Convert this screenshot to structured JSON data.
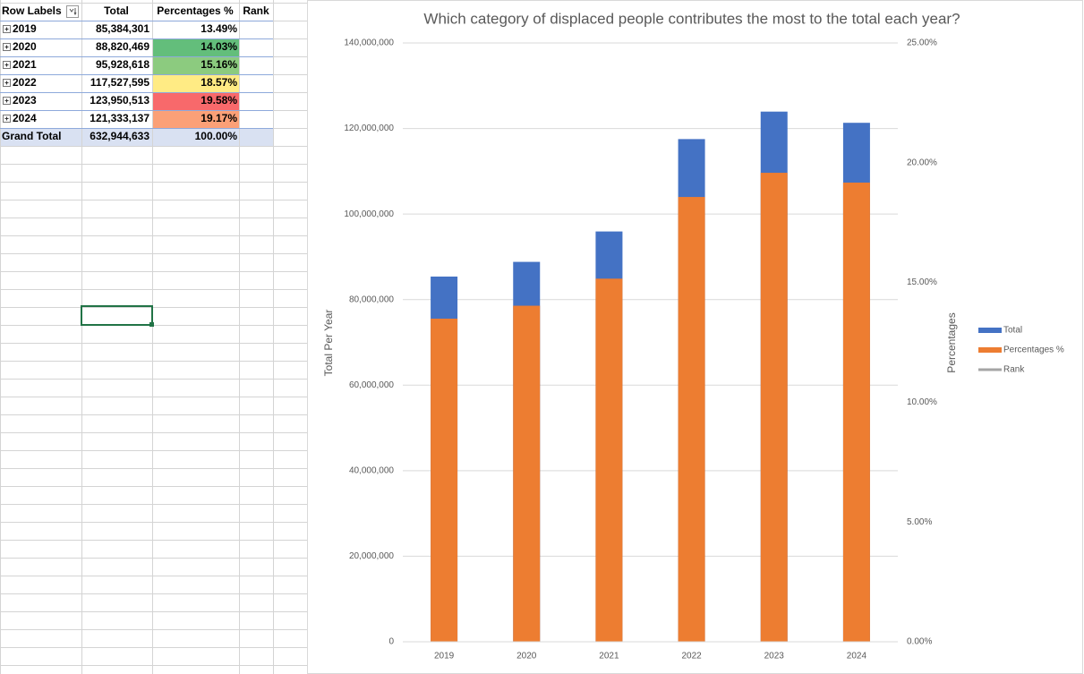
{
  "table": {
    "headers": [
      "Row Labels",
      "Total",
      "Percentages %",
      "Rank"
    ],
    "rows": [
      [
        "2019",
        "85,384,301",
        "13.49%"
      ],
      [
        "2020",
        "88,820,469",
        "14.03%"
      ],
      [
        "2021",
        "95,928,618",
        "15.16%"
      ],
      [
        "2022",
        "117,527,595",
        "18.57%"
      ],
      [
        "2023",
        "123,950,513",
        "19.58%"
      ],
      [
        "2024",
        "121,333,137",
        "19.17%"
      ]
    ],
    "percent_colors": [
      "#ffffff",
      "#63be7b",
      "#8ccb7f",
      "#ffeb84",
      "#f8696b",
      "#fba077"
    ],
    "grand_total": [
      "Grand Total",
      "632,944,633",
      "100.00%"
    ]
  },
  "chart_data": {
    "type": "bar",
    "title": "Which category of displaced people contributes the most to the total each year?",
    "y_label": "Total Per Year",
    "y2_label": "Percentages",
    "categories": [
      "2019",
      "2020",
      "2021",
      "2022",
      "2023",
      "2024"
    ],
    "series": [
      {
        "name": "Total",
        "color": "#4472c4",
        "values": [
          85384301,
          88820469,
          95928618,
          117527595,
          123950513,
          121333137
        ]
      },
      {
        "name": "Percentages %",
        "color": "#ed7d31",
        "axis": "y2",
        "values": [
          13.49,
          14.03,
          15.16,
          18.57,
          19.58,
          19.17
        ]
      },
      {
        "name": "Rank",
        "color": "#a5a5a5",
        "kind": "line",
        "values": [
          null,
          null,
          null,
          null,
          null,
          null
        ]
      }
    ],
    "ylim": [
      0,
      140000000
    ],
    "yticks": [
      0,
      {
        "value": 20000000,
        "label": "20,000,000"
      },
      {
        "value": 40000000,
        "label": "40,000,000"
      },
      {
        "value": 60000000,
        "label": "60,000,000"
      },
      {
        "value": 80000000,
        "label": "80,000,000"
      },
      {
        "value": 100000000,
        "label": "100,000,000"
      },
      {
        "value": 120000000,
        "label": "120,000,000"
      },
      {
        "value": 140000000,
        "label": "140,000,000"
      }
    ],
    "y2lim": [
      0,
      25
    ],
    "y2ticks": [
      {
        "value": 0,
        "label": "0.00%"
      },
      {
        "value": 5,
        "label": "5.00%"
      },
      {
        "value": 10,
        "label": "10.00%"
      },
      {
        "value": 15,
        "label": "15.00%"
      },
      {
        "value": 20,
        "label": "20.00%"
      },
      {
        "value": 25,
        "label": "25.00%"
      }
    ],
    "grid": true,
    "legend": "right"
  }
}
